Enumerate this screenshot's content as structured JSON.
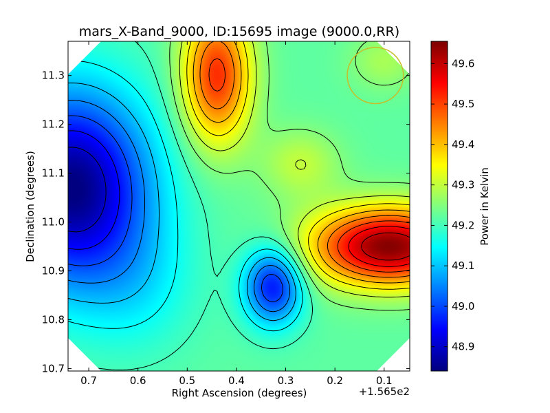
{
  "chart_data": {
    "type": "heatmap",
    "title": "mars_X-Band_9000, ID:15695 image (9000.0,RR)",
    "xlabel": "Right Ascension (degrees)",
    "ylabel": "Declination (degrees)",
    "x_offset_label": "+1.565e2",
    "colorbar_label": "Power in Kelvin",
    "colormap": "jet",
    "xlim": [
      0.742,
      0.048
    ],
    "ylim": [
      10.695,
      11.37
    ],
    "clim": [
      48.84,
      49.655
    ],
    "x_ticks": [
      0.7,
      0.6,
      0.5,
      0.4,
      0.3,
      0.2,
      0.1
    ],
    "x_tick_labels": [
      "0.7",
      "0.6",
      "0.5",
      "0.4",
      "0.3",
      "0.2",
      "0.1"
    ],
    "y_ticks": [
      10.7,
      10.8,
      10.9,
      11.0,
      11.1,
      11.2,
      11.3
    ],
    "y_tick_labels": [
      "10.7",
      "10.8",
      "10.9",
      "11.0",
      "11.1",
      "11.2",
      "11.3"
    ],
    "colorbar_ticks": [
      48.9,
      49.0,
      49.1,
      49.2,
      49.3,
      49.4,
      49.5,
      49.6
    ],
    "colorbar_tick_labels": [
      "48.9",
      "49.0",
      "49.1",
      "49.2",
      "49.3",
      "49.4",
      "49.5",
      "49.6"
    ],
    "contour_levels": [
      48.9,
      48.95,
      49.0,
      49.05,
      49.1,
      49.15,
      49.2,
      49.25,
      49.3,
      49.35,
      49.4,
      49.45,
      49.5,
      49.55,
      49.6
    ],
    "baseline": 49.22,
    "features": [
      {
        "x": 0.735,
        "y": 11.07,
        "amplitude": -0.38,
        "width_x": 0.16,
        "width_y": 0.2
      },
      {
        "x": 0.6,
        "y": 10.87,
        "amplitude": -0.06,
        "width_x": 0.12,
        "width_y": 0.14
      },
      {
        "x": 0.09,
        "y": 10.95,
        "amplitude": 0.43,
        "width_x": 0.16,
        "width_y": 0.08
      },
      {
        "x": 0.44,
        "y": 11.3,
        "amplitude": 0.3,
        "width_x": 0.07,
        "width_y": 0.14
      },
      {
        "x": 0.325,
        "y": 10.87,
        "amplitude": -0.27,
        "width_x": 0.06,
        "width_y": 0.08
      },
      {
        "x": 0.27,
        "y": 11.12,
        "amplitude": 0.08,
        "width_x": 0.08,
        "width_y": 0.07
      },
      {
        "x": 0.1,
        "y": 11.33,
        "amplitude": 0.06,
        "width_x": 0.07,
        "width_y": 0.06
      }
    ],
    "beam_circle": {
      "x": 0.118,
      "y": 11.3,
      "radius_x_deg": 0.057,
      "color": "#c8bd2a"
    },
    "data_region": "octagon"
  }
}
